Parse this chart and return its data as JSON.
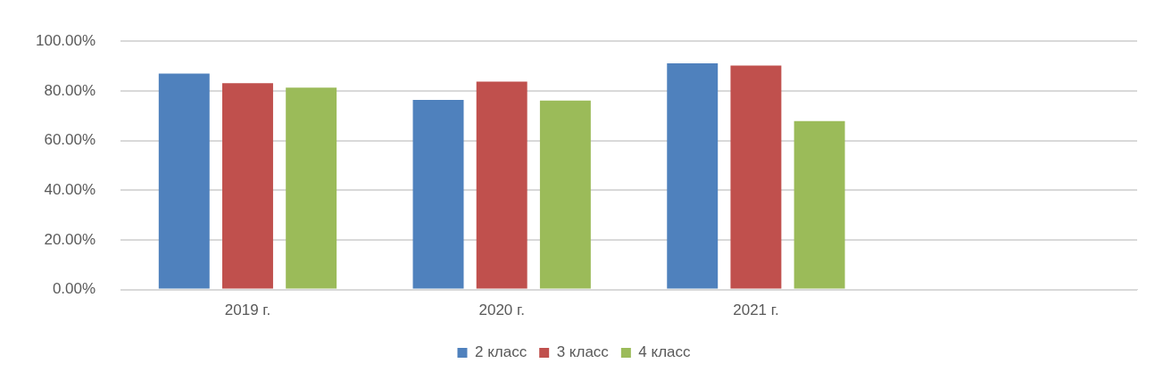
{
  "chart_data": {
    "type": "bar",
    "categories": [
      "2019 г.",
      "2020 г.",
      "2021 г.",
      null
    ],
    "series": [
      {
        "name": "2 класс",
        "color": "#4f81bd",
        "values": [
          87.0,
          76.4,
          91.1,
          null
        ]
      },
      {
        "name": "3 класс",
        "color": "#c0504d",
        "values": [
          83.1,
          83.7,
          90.2,
          null
        ]
      },
      {
        "name": "4 класс",
        "color": "#9bbb59",
        "values": [
          81.3,
          76.1,
          67.8,
          null
        ]
      }
    ],
    "ylim": [
      0,
      100
    ],
    "yticks": [
      {
        "value": 0,
        "label": "0.00%"
      },
      {
        "value": 20,
        "label": "20.00%"
      },
      {
        "value": 40,
        "label": "40.00%"
      },
      {
        "value": 60,
        "label": "60.00%"
      },
      {
        "value": 80,
        "label": "80.00%"
      },
      {
        "value": 100,
        "label": "100.00%"
      }
    ],
    "grid": "y",
    "legend": "bottom"
  }
}
